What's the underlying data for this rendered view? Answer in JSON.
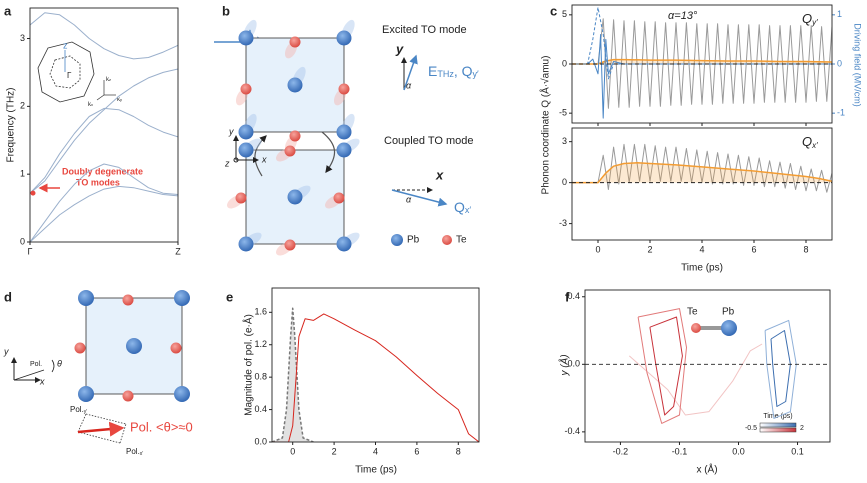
{
  "panel_labels": [
    "a",
    "b",
    "c",
    "d",
    "e",
    "f"
  ],
  "chart_data": [
    {
      "type": "line",
      "ylabel": "Frequency (THz)",
      "annotation": [
        "Doubly degenerate",
        "TO modes"
      ],
      "xlim": [
        0,
        1
      ],
      "ylim": [
        0,
        3.45
      ],
      "xticks": [
        {
          "value": 0,
          "label": "Γ"
        },
        {
          "value": 1,
          "label": "Z"
        }
      ],
      "yticks": [
        0,
        1,
        2,
        3
      ],
      "x": [
        0,
        0.1,
        0.2,
        0.3,
        0.4,
        0.5,
        0.6,
        0.7,
        0.8,
        0.9,
        1
      ],
      "highlight": {
        "x": 0,
        "y": 0.72,
        "color": "#e8473f"
      },
      "series": [
        {
          "color": "#9bb0cc",
          "values": [
            3.2,
            3.38,
            3.35,
            3.2,
            3.0,
            2.85,
            2.75,
            2.7,
            2.72,
            2.8,
            2.9
          ]
        },
        {
          "color": "#9bb0cc",
          "values": [
            0.72,
            0.9,
            1.2,
            1.5,
            1.75,
            1.95,
            2.15,
            2.3,
            2.42,
            2.5,
            2.55
          ]
        },
        {
          "color": "#9bb0cc",
          "values": [
            0.72,
            0.95,
            1.3,
            1.6,
            1.85,
            1.97,
            1.95,
            1.85,
            1.72,
            1.62,
            1.55
          ]
        },
        {
          "color": "#9bb0cc",
          "values": [
            0,
            0.3,
            0.6,
            0.85,
            1.05,
            1.15,
            1.1,
            0.95,
            0.8,
            0.72,
            0.7
          ]
        },
        {
          "color": "#9bb0cc",
          "values": [
            0,
            0.2,
            0.4,
            0.55,
            0.68,
            0.78,
            0.82,
            0.8,
            0.75,
            0.7,
            0.68
          ]
        }
      ],
      "inset": {
        "z": "z",
        "gamma": "Γ",
        "k": [
          {
            "main": "k",
            "sub": "z"
          },
          {
            "main": "k",
            "sub": "x"
          },
          {
            "main": "k",
            "sub": "y"
          }
        ]
      }
    },
    {
      "type": "line",
      "ylabel": "Phonon coordinate Q (Å·√amu)",
      "y2label": "Driving field (MV/cm)",
      "annotation": "α=13°",
      "label": {
        "main": "Q",
        "sub": "y′"
      },
      "xlim": [
        -1,
        9
      ],
      "ylim": [
        -6,
        6
      ],
      "y2lim": [
        -1.2,
        1.2
      ],
      "xticks": [
        0,
        2,
        4,
        6,
        8
      ],
      "yticks": [
        -5,
        0,
        5
      ],
      "y2ticks": [
        -1,
        0,
        1
      ],
      "reference_line": 0,
      "x": [
        -1,
        -0.8,
        -0.6,
        -0.4,
        -0.2,
        0,
        0.2,
        0.4,
        0.6,
        0.8,
        1,
        1.2,
        1.4,
        1.6,
        1.8,
        2,
        2.2,
        2.4,
        2.6,
        2.8,
        3,
        3.2,
        3.4,
        3.6,
        3.8,
        4,
        4.2,
        4.4,
        4.6,
        4.8,
        5,
        5.2,
        5.4,
        5.6,
        5.8,
        6,
        6.2,
        6.4,
        6.6,
        6.8,
        7,
        7.2,
        7.4,
        7.6,
        7.8,
        8,
        8.2,
        8.4,
        8.6,
        8.8,
        9
      ],
      "series": [
        {
          "color": "#9a9a9a",
          "values": [
            0,
            0,
            0,
            0,
            0,
            0,
            4.6,
            -4.5,
            4.5,
            -4.4,
            4.4,
            -4.4,
            4.4,
            -4.3,
            4.3,
            -4.3,
            4.3,
            -4.3,
            4.2,
            -4.2,
            4.2,
            -4.2,
            4.2,
            -4.1,
            4.1,
            -4.1,
            4.1,
            -4.1,
            4.1,
            -4.0,
            4.0,
            -4.0,
            4.0,
            -4.0,
            4.0,
            -4.0,
            4.0,
            -3.9,
            3.9,
            -3.9,
            3.9,
            -3.9,
            3.9,
            -3.9,
            3.9,
            -3.9,
            3.9,
            -3.8,
            3.8,
            -3.8,
            3.8
          ]
        },
        {
          "color": "#f39c32",
          "fill": true,
          "x": [
            -1,
            0,
            0.3,
            0.6,
            1,
            2,
            3,
            4,
            5,
            6,
            7,
            8,
            9
          ],
          "values": [
            0,
            0,
            0.3,
            0.45,
            0.45,
            0.4,
            0.4,
            0.35,
            0.3,
            0.3,
            0.25,
            0.25,
            0.2
          ]
        },
        {
          "color": "#4a86c5",
          "axis": "y2",
          "x": [
            -1,
            -0.4,
            -0.2,
            0,
            0.1,
            0.2,
            0.3,
            0.4,
            0.6,
            1,
            9
          ],
          "values": [
            0,
            0,
            0.1,
            -0.2,
            0.6,
            -1.1,
            0.5,
            -0.2,
            0.05,
            0,
            0
          ]
        },
        {
          "color": "#4a86c5",
          "axis": "y2",
          "dashed": true,
          "x": [
            -1,
            -0.4,
            -0.2,
            0,
            0.2,
            0.4,
            0.6,
            1,
            9
          ],
          "values": [
            0,
            0,
            0.5,
            1.15,
            0.6,
            -0.3,
            0,
            0,
            0
          ]
        }
      ]
    },
    {
      "type": "line",
      "xlabel": "Time (ps)",
      "label": {
        "main": "Q",
        "sub": "x′"
      },
      "xlim": [
        -1,
        9
      ],
      "ylim": [
        -4.2,
        4
      ],
      "xticks": [
        0,
        2,
        4,
        6,
        8
      ],
      "yticks": [
        -3,
        0,
        3
      ],
      "reference_line": 0,
      "x": [
        -1,
        -0.8,
        -0.6,
        -0.4,
        -0.2,
        0,
        0.2,
        0.4,
        0.6,
        0.8,
        1,
        1.2,
        1.4,
        1.6,
        1.8,
        2,
        2.2,
        2.4,
        2.6,
        2.8,
        3,
        3.2,
        3.4,
        3.6,
        3.8,
        4,
        4.2,
        4.4,
        4.6,
        4.8,
        5,
        5.2,
        5.4,
        5.6,
        5.8,
        6,
        6.2,
        6.4,
        6.6,
        6.8,
        7,
        7.2,
        7.4,
        7.6,
        7.8,
        8,
        8.2,
        8.4,
        8.6,
        8.8,
        9
      ],
      "series": [
        {
          "color": "#9a9a9a",
          "values": [
            0,
            0,
            0,
            0,
            0,
            0,
            2.0,
            -0.5,
            2.6,
            -0.1,
            2.8,
            0.0,
            2.8,
            0.1,
            2.8,
            0.1,
            2.7,
            0.1,
            2.6,
            0.1,
            2.6,
            0.1,
            2.5,
            0.0,
            2.4,
            0.0,
            2.3,
            -0.1,
            2.2,
            -0.1,
            2.1,
            -0.1,
            2.0,
            -0.2,
            1.9,
            -0.2,
            1.8,
            -0.3,
            1.6,
            -0.3,
            1.5,
            -0.4,
            1.4,
            -0.5,
            1.2,
            -0.6,
            1.0,
            -0.6,
            0.9,
            -0.7,
            0.7
          ]
        },
        {
          "color": "#f39c32",
          "fill": true,
          "x": [
            -1,
            0,
            0.3,
            0.6,
            1,
            1.5,
            2,
            3,
            4,
            5,
            6,
            7,
            8,
            8.5,
            9
          ],
          "values": [
            0,
            0,
            0.7,
            1.2,
            1.4,
            1.45,
            1.4,
            1.3,
            1.15,
            1,
            0.85,
            0.65,
            0.45,
            0.3,
            0.1
          ]
        }
      ]
    },
    {
      "type": "line",
      "ylabel": "Magnitude of pol. (e·Å)",
      "xlabel": "Time (ps)",
      "xlim": [
        -1,
        9
      ],
      "ylim": [
        0,
        1.9
      ],
      "xticks": [
        0,
        2,
        4,
        6,
        8
      ],
      "yticks": [
        {
          "value": 0,
          "label": "0.0"
        },
        0.4,
        0.8,
        1.2,
        1.6
      ],
      "series": [
        {
          "color": "#777777",
          "dashed": true,
          "fill": true,
          "x": [
            -1,
            -0.5,
            -0.3,
            -0.1,
            0,
            0.1,
            0.3,
            0.5,
            1
          ],
          "values": [
            0,
            0.05,
            0.4,
            1.3,
            1.65,
            1.3,
            0.4,
            0.05,
            0
          ]
        },
        {
          "color": "#d7261e",
          "x": [
            -1,
            -0.2,
            0,
            0.3,
            0.6,
            1,
            1.5,
            2,
            3,
            4,
            5,
            6,
            7,
            7.5,
            8,
            8.5,
            9
          ],
          "values": [
            0,
            0,
            0.2,
            1.3,
            1.52,
            1.5,
            1.58,
            1.52,
            1.38,
            1.25,
            1.05,
            0.82,
            0.6,
            0.5,
            0.4,
            0.1,
            0
          ]
        }
      ]
    },
    {
      "type": "line",
      "xlabel": "x (Å)",
      "ylabel": "y (Å)",
      "xlim": [
        -0.26,
        0.155
      ],
      "ylim": [
        -0.46,
        0.44
      ],
      "xticks": [
        -0.2,
        -0.1,
        {
          "value": 0,
          "label": "0.0"
        },
        0.1
      ],
      "yticks": [
        -0.4,
        {
          "value": 0,
          "label": "0.0"
        },
        0.4
      ],
      "reference_line": 0,
      "atoms": [
        "Te",
        "Pb"
      ],
      "colorbar_title": "Time (ps)",
      "colorbar_ticks": [
        -0.5,
        2
      ],
      "series": [
        {
          "color": "#f2c4c4",
          "x": [
            -0.185,
            -0.12,
            -0.09,
            -0.05,
            -0.01,
            0.02,
            0.04
          ],
          "values": [
            0.05,
            -0.15,
            -0.3,
            -0.28,
            -0.1,
            0.08,
            0.12
          ]
        },
        {
          "color": "#e27a7a",
          "x": [
            -0.17,
            -0.1,
            -0.088,
            -0.1,
            -0.13,
            -0.155,
            -0.17
          ],
          "values": [
            0.28,
            0.33,
            0.1,
            -0.3,
            -0.35,
            -0.05,
            0.28
          ]
        },
        {
          "color": "#c8323a",
          "x": [
            -0.15,
            -0.105,
            -0.095,
            -0.11,
            -0.125,
            -0.14,
            -0.15
          ],
          "values": [
            0.22,
            0.28,
            0.05,
            -0.25,
            -0.3,
            0,
            0.22
          ]
        },
        {
          "color": "#8fb0d8",
          "x": [
            0.045,
            0.085,
            0.098,
            0.088,
            0.06,
            0.048,
            0.045
          ],
          "values": [
            0.2,
            0.26,
            0,
            -0.28,
            -0.32,
            0,
            0.2
          ]
        },
        {
          "color": "#3d6fb0",
          "x": [
            0.055,
            0.078,
            0.088,
            0.08,
            0.065,
            0.058,
            0.055
          ],
          "values": [
            0.15,
            0.2,
            0,
            -0.22,
            -0.25,
            0,
            0.15
          ]
        }
      ]
    }
  ],
  "diagram_b": {
    "excited": "Excited TO mode",
    "coupled": "Coupled TO mode",
    "y_axis": "y",
    "x_axis": "x",
    "field": {
      "e": "E",
      "e_sub": "THz",
      "sep": ", Q",
      "q_sub": "y′"
    },
    "alpha_top": "α",
    "alpha_bottom": "α",
    "qx": {
      "main": "Q",
      "sub": "x′"
    },
    "frame": {
      "y": "y",
      "z": "z",
      "x": "x"
    },
    "legend": [
      "Pb",
      "Te"
    ]
  },
  "diagram_d": {
    "y": "y",
    "x": "x",
    "pol": "Pol.",
    "theta": "θ",
    "pol_y": {
      "main": "Pol.",
      "sub": "y′"
    },
    "pol_main": "Pol.  <θ>≈0",
    "pol_x": {
      "main": "Pol.",
      "sub": "x′"
    }
  }
}
